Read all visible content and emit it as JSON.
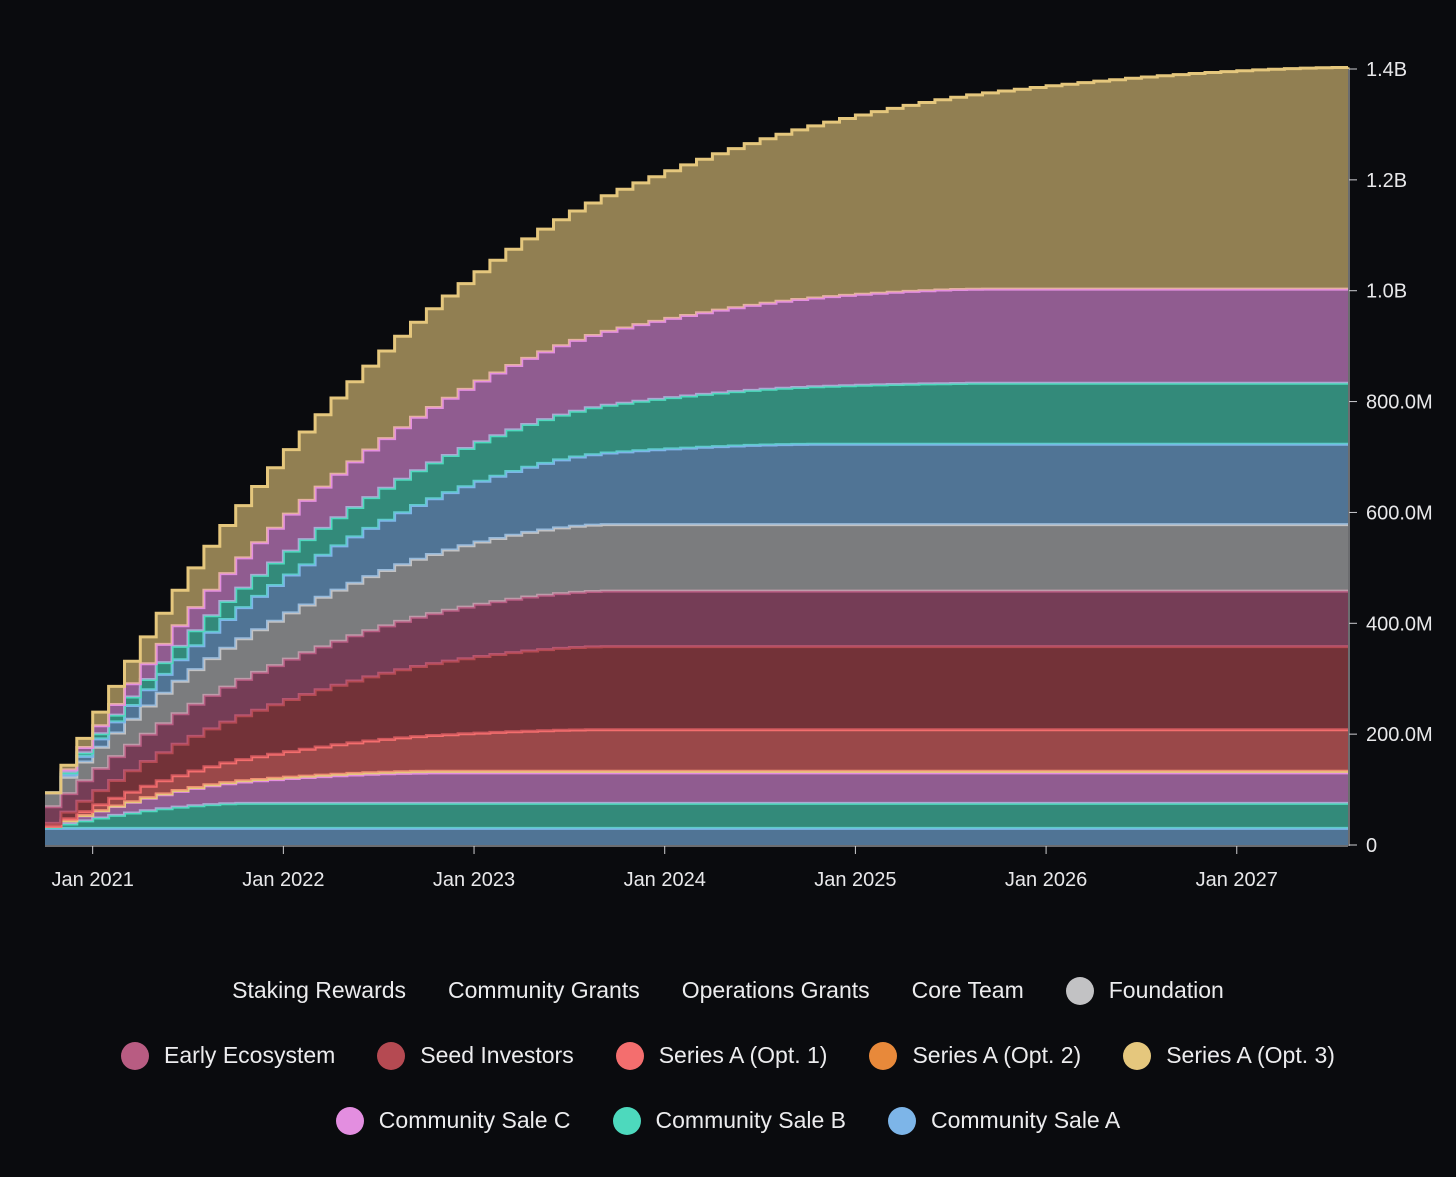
{
  "chart_data": {
    "type": "area",
    "stacked": true,
    "x_ticks": [
      "Jan 2021",
      "Jan 2022",
      "Jan 2023",
      "Jan 2024",
      "Jan 2025",
      "Jan 2026",
      "Jan 2027"
    ],
    "y_ticks": [
      "0",
      "200.0M",
      "400.0M",
      "600.0M",
      "800.0M",
      "1.0B",
      "1.2B",
      "1.4B"
    ],
    "x_range": [
      "2020-10",
      "2027-08"
    ],
    "ylim": [
      0,
      1400000000
    ],
    "y_axis_position": "right",
    "grid": false,
    "legend_position": "bottom",
    "series_final_values_note_units": "tokens",
    "series": [
      {
        "name": "Community Sale A",
        "color": "#7db5e8",
        "start": 30000000,
        "final": 30000000,
        "end_date": "2020-11"
      },
      {
        "name": "Community Sale B",
        "color": "#4dd9bd",
        "start": 2000000,
        "final": 45000000,
        "end_date": "2021-10"
      },
      {
        "name": "Community Sale C",
        "color": "#e38ee0",
        "start": 2000000,
        "final": 55000000,
        "end_date": "2022-10"
      },
      {
        "name": "Series A (Opt. 3)",
        "color": "#e5c77d",
        "start": 0,
        "final": 3000000,
        "end_date": "2022-10"
      },
      {
        "name": "Series A (Opt. 2)",
        "color": "#e8893a",
        "start": 0,
        "final": 0,
        "end_date": "2022-10"
      },
      {
        "name": "Series A (Opt. 1)",
        "color": "#f46e6e",
        "start": 0,
        "final": 75000000,
        "end_date": "2023-09"
      },
      {
        "name": "Seed Investors",
        "color": "#b54a52",
        "start": 5000000,
        "final": 150000000,
        "end_date": "2023-09"
      },
      {
        "name": "Early Ecosystem",
        "color": "#b85c82",
        "start": 30000000,
        "final": 100000000,
        "end_date": "2023-09"
      },
      {
        "name": "Foundation",
        "color": "#c2c2c4",
        "start": 25000000,
        "final": 120000000,
        "end_date": "2023-09"
      },
      {
        "name": "Core Team",
        "color": "#7db5e8",
        "start": 0,
        "final": 145000000,
        "end_date": "2024-10"
      },
      {
        "name": "Operations Grants",
        "color": "#4dd9bd",
        "start": 0,
        "final": 110000000,
        "end_date": "2025-09"
      },
      {
        "name": "Community Grants",
        "color": "#e38ee0",
        "start": 0,
        "final": 170000000,
        "end_date": "2025-09"
      },
      {
        "name": "Staking Rewards",
        "color": "#e5c77d",
        "start": 0,
        "final": 400000000,
        "end_date": "2027-08"
      }
    ]
  },
  "legend": {
    "rows": [
      [
        {
          "label": "Staking Rewards",
          "color": "#e5c77d",
          "dot": false
        },
        {
          "label": "Community Grants",
          "color": "#e38ee0",
          "dot": false
        },
        {
          "label": "Operations Grants",
          "color": "#4dd9bd",
          "dot": false
        },
        {
          "label": "Core Team",
          "color": "#7db5e8",
          "dot": false
        },
        {
          "label": "Foundation",
          "color": "#c2c2c4",
          "dot": true
        }
      ],
      [
        {
          "label": "Early Ecosystem",
          "color": "#b85c82",
          "dot": true
        },
        {
          "label": "Seed Investors",
          "color": "#b54a52",
          "dot": true
        },
        {
          "label": "Series A (Opt. 1)",
          "color": "#f46e6e",
          "dot": true
        },
        {
          "label": "Series A (Opt. 2)",
          "color": "#e8893a",
          "dot": true
        },
        {
          "label": "Series A (Opt. 3)",
          "color": "#e5c77d",
          "dot": true
        }
      ],
      [
        {
          "label": "Community Sale C",
          "color": "#e38ee0",
          "dot": true
        },
        {
          "label": "Community Sale B",
          "color": "#4dd9bd",
          "dot": true
        },
        {
          "label": "Community Sale A",
          "color": "#7db5e8",
          "dot": true
        }
      ]
    ]
  }
}
